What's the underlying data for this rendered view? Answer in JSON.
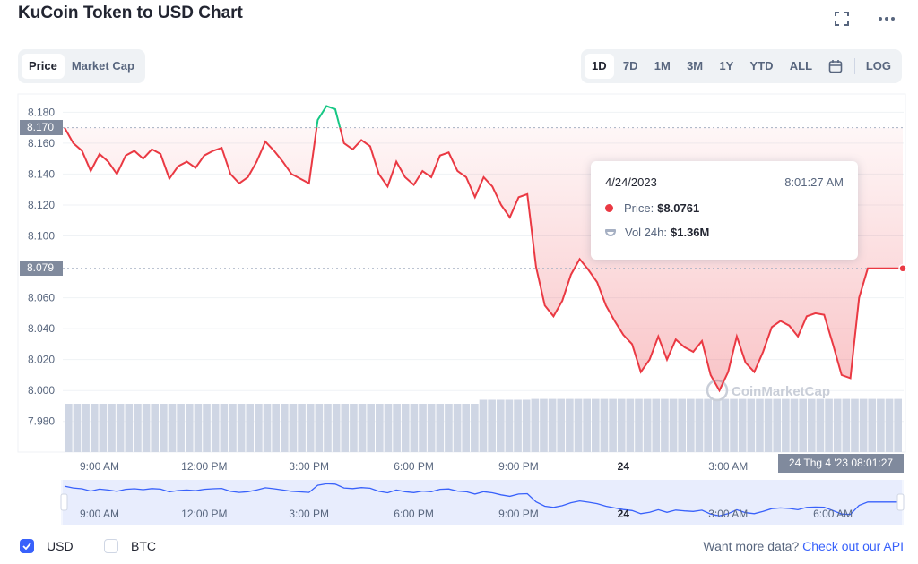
{
  "title": "KuCoin Token to USD Chart",
  "icons": {
    "fullscreen": "fullscreen-icon",
    "more": "more-options-icon",
    "calendar": "calendar-icon",
    "watermark": "coinmarketcap-logo"
  },
  "view_tabs": [
    {
      "label": "Price",
      "active": true
    },
    {
      "label": "Market Cap",
      "active": false
    }
  ],
  "range_tabs": [
    {
      "label": "1D",
      "active": true
    },
    {
      "label": "7D",
      "active": false
    },
    {
      "label": "1M",
      "active": false
    },
    {
      "label": "3M",
      "active": false
    },
    {
      "label": "1Y",
      "active": false
    },
    {
      "label": "YTD",
      "active": false
    },
    {
      "label": "ALL",
      "active": false
    }
  ],
  "log_label": "LOG",
  "tooltip": {
    "date": "4/24/2023",
    "time": "8:01:27 AM",
    "price_label": "Price:",
    "price_value": "$8.0761",
    "vol_label": "Vol 24h:",
    "vol_value": "$1.36M"
  },
  "price_tags": {
    "open": "8.170",
    "current": "8.079"
  },
  "date_tag": "24 Thg 4 '23   08:01:27",
  "watermark": "CoinMarketCap",
  "footer": {
    "usd_label": "USD",
    "btc_label": "BTC",
    "more_text": "Want more data?",
    "api_link": "Check out our API"
  },
  "colors": {
    "up": "#16c784",
    "down": "#ea3943",
    "brush": "#3861fb",
    "volume": "#cfd6e4"
  },
  "chart_data": {
    "type": "line",
    "title": "KuCoin Token to USD Chart",
    "ylabel": "",
    "xlabel": "",
    "ylim": [
      7.97,
      8.186
    ],
    "ticks_y": [
      "8.180",
      "8.160",
      "8.140",
      "8.120",
      "8.100",
      "8.060",
      "8.040",
      "8.020",
      "8.000",
      "7.980"
    ],
    "ticks_x": [
      "9:00 AM",
      "12:00 PM",
      "3:00 PM",
      "6:00 PM",
      "9:00 PM",
      "24",
      "3:00 AM",
      "6:00 AM"
    ],
    "baseline": 8.17,
    "current": 8.079,
    "series": [
      {
        "x": [
          0,
          0.25,
          0.5,
          0.75,
          1,
          1.25,
          1.5,
          1.75,
          2,
          2.25,
          2.5,
          2.75,
          3,
          3.25,
          3.5,
          3.75,
          4,
          4.25,
          4.5,
          4.75,
          5,
          5.25,
          5.5,
          5.75,
          6,
          6.25,
          6.5,
          6.75,
          7,
          7.25,
          7.5,
          7.75,
          8,
          8.25,
          8.5,
          8.75,
          9,
          9.25,
          9.5,
          9.75,
          10,
          10.25,
          10.5,
          10.75,
          11,
          11.25,
          11.5,
          11.75,
          12,
          12.25,
          12.5,
          12.75,
          13,
          13.25,
          13.5,
          13.75,
          14,
          14.25,
          14.5,
          14.75,
          15,
          15.25,
          15.5,
          15.75,
          16,
          16.25,
          16.5,
          16.75,
          17,
          17.25,
          17.5,
          17.75,
          18,
          18.25,
          18.5,
          18.75,
          19,
          19.25,
          19.5,
          19.75,
          20,
          20.25,
          20.5,
          20.75,
          21,
          21.25,
          21.5,
          21.75,
          22,
          22.25,
          22.5,
          22.75,
          23,
          23.25,
          23.5,
          23.75,
          24
        ],
        "values": [
          8.17,
          8.16,
          8.155,
          8.142,
          8.153,
          8.148,
          8.14,
          8.152,
          8.155,
          8.15,
          8.156,
          8.153,
          8.137,
          8.145,
          8.148,
          8.144,
          8.152,
          8.155,
          8.157,
          8.14,
          8.134,
          8.138,
          8.148,
          8.161,
          8.155,
          8.148,
          8.14,
          8.137,
          8.134,
          8.175,
          8.184,
          8.182,
          8.16,
          8.156,
          8.162,
          8.158,
          8.14,
          8.132,
          8.148,
          8.138,
          8.133,
          8.142,
          8.138,
          8.152,
          8.154,
          8.142,
          8.138,
          8.125,
          8.138,
          8.132,
          8.12,
          8.112,
          8.125,
          8.127,
          8.08,
          8.055,
          8.048,
          8.058,
          8.075,
          8.085,
          8.078,
          8.07,
          8.055,
          8.045,
          8.036,
          8.03,
          8.012,
          8.02,
          8.035,
          8.02,
          8.033,
          8.028,
          8.025,
          8.032,
          8.01,
          8.0,
          8.012,
          8.035,
          8.018,
          8.012,
          8.025,
          8.041,
          8.045,
          8.042,
          8.035,
          8.048,
          8.05,
          8.049,
          8.03,
          8.01,
          8.008,
          8.06,
          8.079,
          8.079,
          8.079,
          8.079,
          8.079
        ]
      }
    ],
    "volume": [
      0.6,
      0.6,
      0.6,
      0.6,
      0.6,
      0.6,
      0.6,
      0.6,
      0.6,
      0.6,
      0.6,
      0.6,
      0.6,
      0.6,
      0.6,
      0.6,
      0.6,
      0.6,
      0.6,
      0.6,
      0.6,
      0.6,
      0.6,
      0.6,
      0.6,
      0.6,
      0.6,
      0.6,
      0.6,
      0.6,
      0.6,
      0.6,
      0.6,
      0.6,
      0.6,
      0.6,
      0.6,
      0.6,
      0.6,
      0.6,
      0.6,
      0.6,
      0.6,
      0.6,
      0.6,
      0.6,
      0.6,
      0.6,
      0.65,
      0.65,
      0.65,
      0.65,
      0.65,
      0.65,
      0.66,
      0.66,
      0.66,
      0.66,
      0.66,
      0.66,
      0.66,
      0.66,
      0.66,
      0.66,
      0.66,
      0.66,
      0.66,
      0.66,
      0.66,
      0.66,
      0.66,
      0.66,
      0.66,
      0.66,
      0.66,
      0.66,
      0.66,
      0.66,
      0.66,
      0.66,
      0.66,
      0.66,
      0.66,
      0.66,
      0.66,
      0.66,
      0.66,
      0.66,
      0.66,
      0.66,
      0.66,
      0.66,
      0.66,
      0.66,
      0.66,
      0.66,
      0.66
    ]
  }
}
